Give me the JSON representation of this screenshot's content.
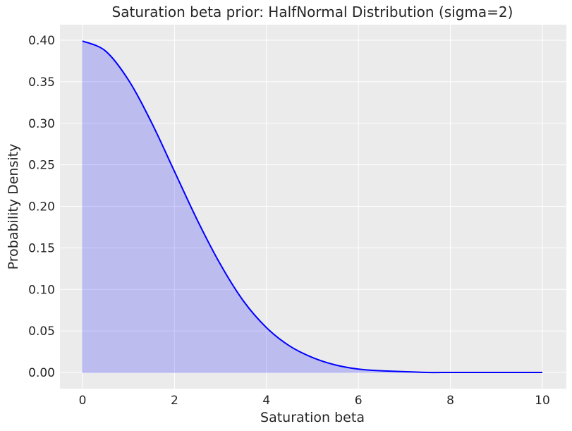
{
  "chart_data": {
    "type": "area",
    "title": "Saturation beta prior: HalfNormal Distribution (sigma=2)",
    "xlabel": "Saturation beta",
    "ylabel": "Probability Density",
    "xlim": [
      0,
      10
    ],
    "ylim": [
      0,
      0.4
    ],
    "xticks": [
      0,
      2,
      4,
      6,
      8,
      10
    ],
    "xtick_labels": [
      "0",
      "2",
      "4",
      "6",
      "8",
      "10"
    ],
    "yticks": [
      0.0,
      0.05,
      0.1,
      0.15,
      0.2,
      0.25,
      0.3,
      0.35,
      0.4
    ],
    "ytick_labels": [
      "0.00",
      "0.05",
      "0.10",
      "0.15",
      "0.20",
      "0.25",
      "0.30",
      "0.35",
      "0.40"
    ],
    "grid": true,
    "series": [
      {
        "x": [
          0,
          0.5,
          1,
          1.5,
          2,
          2.5,
          3,
          3.5,
          4,
          4.5,
          5,
          5.5,
          6,
          6.5,
          7,
          7.5,
          8,
          8.5,
          9,
          9.5,
          10
        ],
        "values": [
          0.399,
          0.387,
          0.352,
          0.301,
          0.242,
          0.183,
          0.13,
          0.086,
          0.054,
          0.032,
          0.018,
          0.009,
          0.004,
          0.002,
          0.001,
          0.0,
          0.0,
          0.0,
          0.0,
          0.0,
          0.0
        ]
      }
    ],
    "colors": {
      "line": "#0000ff",
      "fill": "#0000ff",
      "plot_background": "#ebebeb",
      "grid": "#ffffff",
      "text": "#262626"
    }
  }
}
